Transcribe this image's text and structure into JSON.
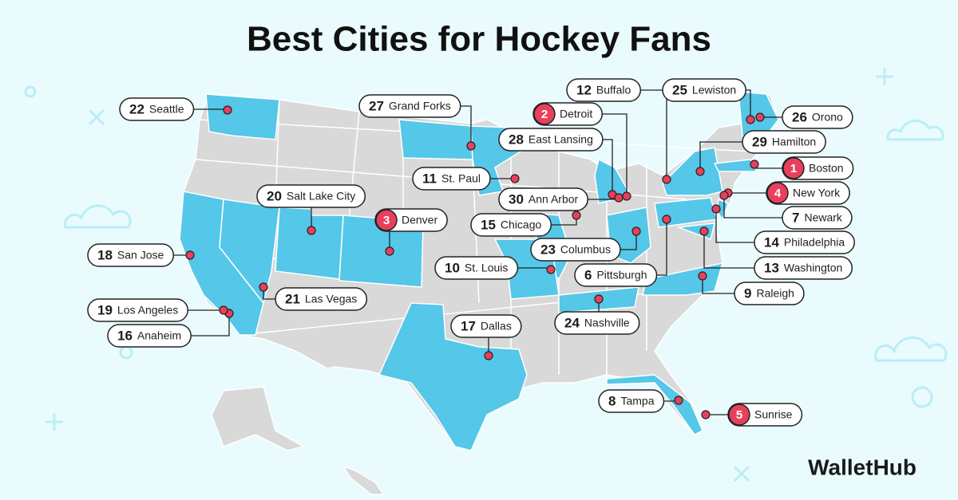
{
  "title": "Best Cities for Hockey Fans",
  "featured_cities": [
    {
      "rank": 1,
      "name": "Boston"
    },
    {
      "rank": 2,
      "name": "Detroit"
    },
    {
      "rank": 3,
      "name": "Denver"
    },
    {
      "rank": 4,
      "name": "New York"
    },
    {
      "rank": 5,
      "name": "Sunrise"
    }
  ],
  "cities": [
    {
      "rank": 6,
      "name": "Pittsburgh"
    },
    {
      "rank": 7,
      "name": "Newark"
    },
    {
      "rank": 8,
      "name": "Tampa"
    },
    {
      "rank": 9,
      "name": "Raleigh"
    },
    {
      "rank": 10,
      "name": "St. Louis"
    },
    {
      "rank": 11,
      "name": "St. Paul"
    },
    {
      "rank": 12,
      "name": "Buffalo"
    },
    {
      "rank": 13,
      "name": "Washington"
    },
    {
      "rank": 14,
      "name": "Philadelphia"
    },
    {
      "rank": 15,
      "name": "Chicago"
    },
    {
      "rank": 16,
      "name": "Anaheim"
    },
    {
      "rank": 17,
      "name": "Dallas"
    },
    {
      "rank": 18,
      "name": "San Jose"
    },
    {
      "rank": 19,
      "name": "Los Angeles"
    },
    {
      "rank": 20,
      "name": "Salt Lake City"
    },
    {
      "rank": 21,
      "name": "Las Vegas"
    },
    {
      "rank": 22,
      "name": "Seattle"
    },
    {
      "rank": 23,
      "name": "Columbus"
    },
    {
      "rank": 24,
      "name": "Nashville"
    },
    {
      "rank": 25,
      "name": "Lewiston"
    },
    {
      "rank": 26,
      "name": "Orono"
    },
    {
      "rank": 27,
      "name": "Grand Forks"
    },
    {
      "rank": 28,
      "name": "East Lansing"
    },
    {
      "rank": 29,
      "name": "Hamilton"
    },
    {
      "rank": 30,
      "name": "Ann Arbor"
    }
  ],
  "brand": "WalletHub"
}
